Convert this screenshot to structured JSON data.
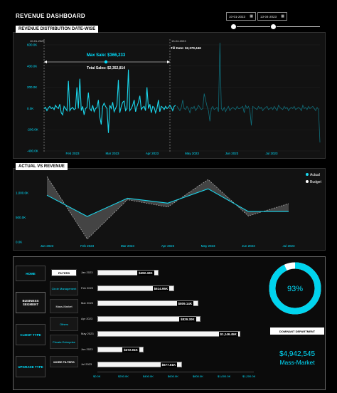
{
  "dashboard": {
    "title": "REVENUE DASHBOARD"
  },
  "date_filter": {
    "start": "10-01-2023",
    "end": "13-04-2023",
    "calendar_icon": "calendar-icon",
    "slider_start": 0.0,
    "slider_end": 0.5
  },
  "revenue_panel": {
    "title": "REVENUE DISTRIBUTION DATE-WISE",
    "max_sale": "Max Sale: $366,233",
    "total_sales": "Total Sales: $2,352,814",
    "till_date": "Till Date: $2,379,446",
    "start_marker": "10-01-2023",
    "end_marker": "13-04-2023"
  },
  "actual_panel": {
    "title": "ACTUAL VS REVENUE",
    "legend_actual": "Actual",
    "legend_budget": "Budget"
  },
  "nav": {
    "home": "HOME",
    "business_segment": "BUSINESS SEGMENT",
    "client_type": "CLIENT TYPE",
    "upgrade_type": "UPGRADE TYPE"
  },
  "filters": {
    "header": "FILTERS",
    "items": [
      "Circle Management",
      "Mass-Market",
      "Others",
      "Private Enterprise"
    ],
    "more": "MORE FILTERS"
  },
  "donut": {
    "percent": "93%",
    "value": 0.93
  },
  "dominant": {
    "label": "DOMINANT DEPARTMENT",
    "value": "$4,942,545",
    "name": "Mass-Market"
  },
  "chart_data": [
    {
      "type": "line",
      "title": "REVENUE DISTRIBUTION DATE-WISE",
      "y_ticks": [
        "600.0K",
        "400.0K",
        "200.0K",
        "0.0K",
        "-200.0K",
        "-400.0K"
      ],
      "x_ticks": [
        "Feb 2023",
        "Mar 2023",
        "Apr 2023",
        "May 2023",
        "Jun 2023",
        "Jul 2023"
      ],
      "ylim": [
        -400000,
        600000
      ],
      "series": [
        {
          "name": "highlighted",
          "x": [
            0,
            1,
            2,
            3,
            4,
            5,
            6,
            7,
            8,
            9,
            10,
            11,
            12,
            13,
            14,
            15,
            16,
            17,
            18,
            19,
            20,
            21,
            22,
            23,
            24,
            25,
            26,
            27,
            28,
            29,
            30,
            31,
            32,
            33,
            34,
            35,
            36,
            37,
            38,
            39,
            40,
            41,
            42,
            43,
            44,
            45,
            46,
            47,
            48,
            49,
            50,
            51,
            52,
            53,
            54,
            55,
            56,
            57,
            58,
            59,
            60,
            61,
            62,
            63,
            64,
            65,
            66,
            67,
            68,
            69,
            70,
            71,
            72,
            73,
            74,
            75,
            76,
            77,
            78,
            79,
            80,
            81,
            82,
            83,
            84,
            85,
            86,
            87,
            88,
            89,
            90,
            91,
            92
          ],
          "values": [
            0,
            10000,
            -20000,
            5000,
            20000,
            0,
            10000,
            -10000,
            30000,
            10000,
            0,
            40000,
            -40000,
            -60000,
            20000,
            0,
            -20000,
            260000,
            -20000,
            0,
            10000,
            -10000,
            0,
            200000,
            0,
            280000,
            -20000,
            20000,
            -60000,
            0,
            10000,
            150000,
            0,
            -20000,
            30000,
            -30000,
            0,
            10000,
            80000,
            -80000,
            -150000,
            20000,
            50000,
            20000,
            0,
            -230000,
            30000,
            0,
            60000,
            -30000,
            0,
            30000,
            270000,
            -40000,
            20000,
            60000,
            70000,
            -20000,
            0,
            366233,
            -20000,
            0,
            30000,
            80000,
            -30000,
            20000,
            60000,
            120000,
            -10000,
            10000,
            20000,
            -20000,
            200000,
            0,
            40000,
            -40000,
            20000,
            10000,
            -40000,
            0,
            80000,
            -30000,
            20000,
            10000,
            -10000,
            20000,
            0,
            10000,
            30000,
            10000,
            -20000,
            20000,
            30000
          ]
        },
        {
          "name": "faded",
          "x": [
            93,
            94,
            95,
            96,
            97,
            98,
            99,
            100,
            101,
            102,
            103,
            104,
            105,
            106,
            107,
            108,
            109,
            110,
            111,
            112,
            113,
            114,
            115,
            116,
            117,
            118,
            119,
            120,
            121,
            122,
            123,
            124,
            125,
            126,
            127,
            128,
            129,
            130,
            131,
            132,
            133,
            134,
            135,
            136,
            137,
            138,
            139,
            140,
            141,
            142,
            143,
            144,
            145,
            146,
            147,
            148,
            149,
            150,
            151,
            152,
            153,
            154,
            155,
            156,
            157,
            158,
            159,
            160,
            161,
            162,
            163,
            164,
            165,
            166,
            167,
            168,
            169,
            170,
            171,
            172,
            173,
            174,
            175,
            176,
            177,
            178,
            179,
            180,
            181,
            182,
            183,
            184,
            185,
            186,
            187,
            188,
            189,
            190,
            191,
            192,
            193
          ],
          "values": [
            20000,
            0,
            -20000,
            10000,
            80000,
            0,
            -10000,
            20000,
            0,
            -40000,
            10000,
            0,
            20000,
            -20000,
            0,
            30000,
            10000,
            -10000,
            0,
            140000,
            80000,
            20000,
            -20000,
            -120000,
            0,
            20000,
            -10000,
            0,
            10000,
            -30000,
            620000,
            0,
            -20000,
            10000,
            -30000,
            0,
            20000,
            -20000,
            0,
            10000,
            0,
            -10000,
            20000,
            0,
            0,
            10000,
            20000,
            -40000,
            30000,
            0,
            20000,
            -20000,
            -160000,
            20000,
            10000,
            0,
            -10000,
            20000,
            0,
            10000,
            -20000,
            0,
            10000,
            20000,
            -10000,
            0,
            10000,
            -10000,
            20000,
            0,
            -20000,
            30000,
            10000,
            0,
            -10000,
            20000,
            0,
            10000,
            -20000,
            0,
            10000,
            0,
            20000,
            -10000,
            0,
            10000,
            0,
            -20000,
            30000,
            0,
            10000,
            -10000,
            20000,
            0,
            10000,
            20000,
            0,
            -20000,
            10000,
            -10000,
            -320000
          ]
        }
      ]
    },
    {
      "type": "area",
      "title": "ACTUAL VS REVENUE",
      "categories": [
        "Jan 2023",
        "Feb 2023",
        "Mar 2023",
        "Apr 2023",
        "May 2023",
        "Jun 2023",
        "Jul 2023"
      ],
      "y_ticks": [
        "1,000.0K",
        "500.0K",
        "0.0K"
      ],
      "ylim": [
        0,
        1300000
      ],
      "series": [
        {
          "name": "Actual",
          "values": [
            950000,
            520000,
            890000,
            790000,
            1080000,
            620000,
            620000
          ]
        },
        {
          "name": "Budget",
          "values": [
            1330000,
            60000,
            860000,
            710000,
            1270000,
            530000,
            780000
          ]
        }
      ]
    },
    {
      "type": "bar",
      "orientation": "horizontal",
      "categories": [
        "Jan 2023",
        "Feb 2023",
        "Mar 2023",
        "Apr 2023",
        "May 2023",
        "Jun 2023",
        "Jul 2023"
      ],
      "values": [
        492400,
        614950,
        809140,
        829300,
        1146450,
        372910,
        677610
      ],
      "data_labels": [
        "$492.40K",
        "$614.95K",
        "$809.14K",
        "$829.30K",
        "$1,146.45K",
        "$372.91K",
        "$677.61K"
      ],
      "x_ticks": [
        "$0.0K",
        "$200.0K",
        "$400.0K",
        "$600.0K",
        "$800.0K",
        "$1,000.0K",
        "$1,200.0K"
      ],
      "xlim": [
        0,
        1200000
      ]
    }
  ]
}
